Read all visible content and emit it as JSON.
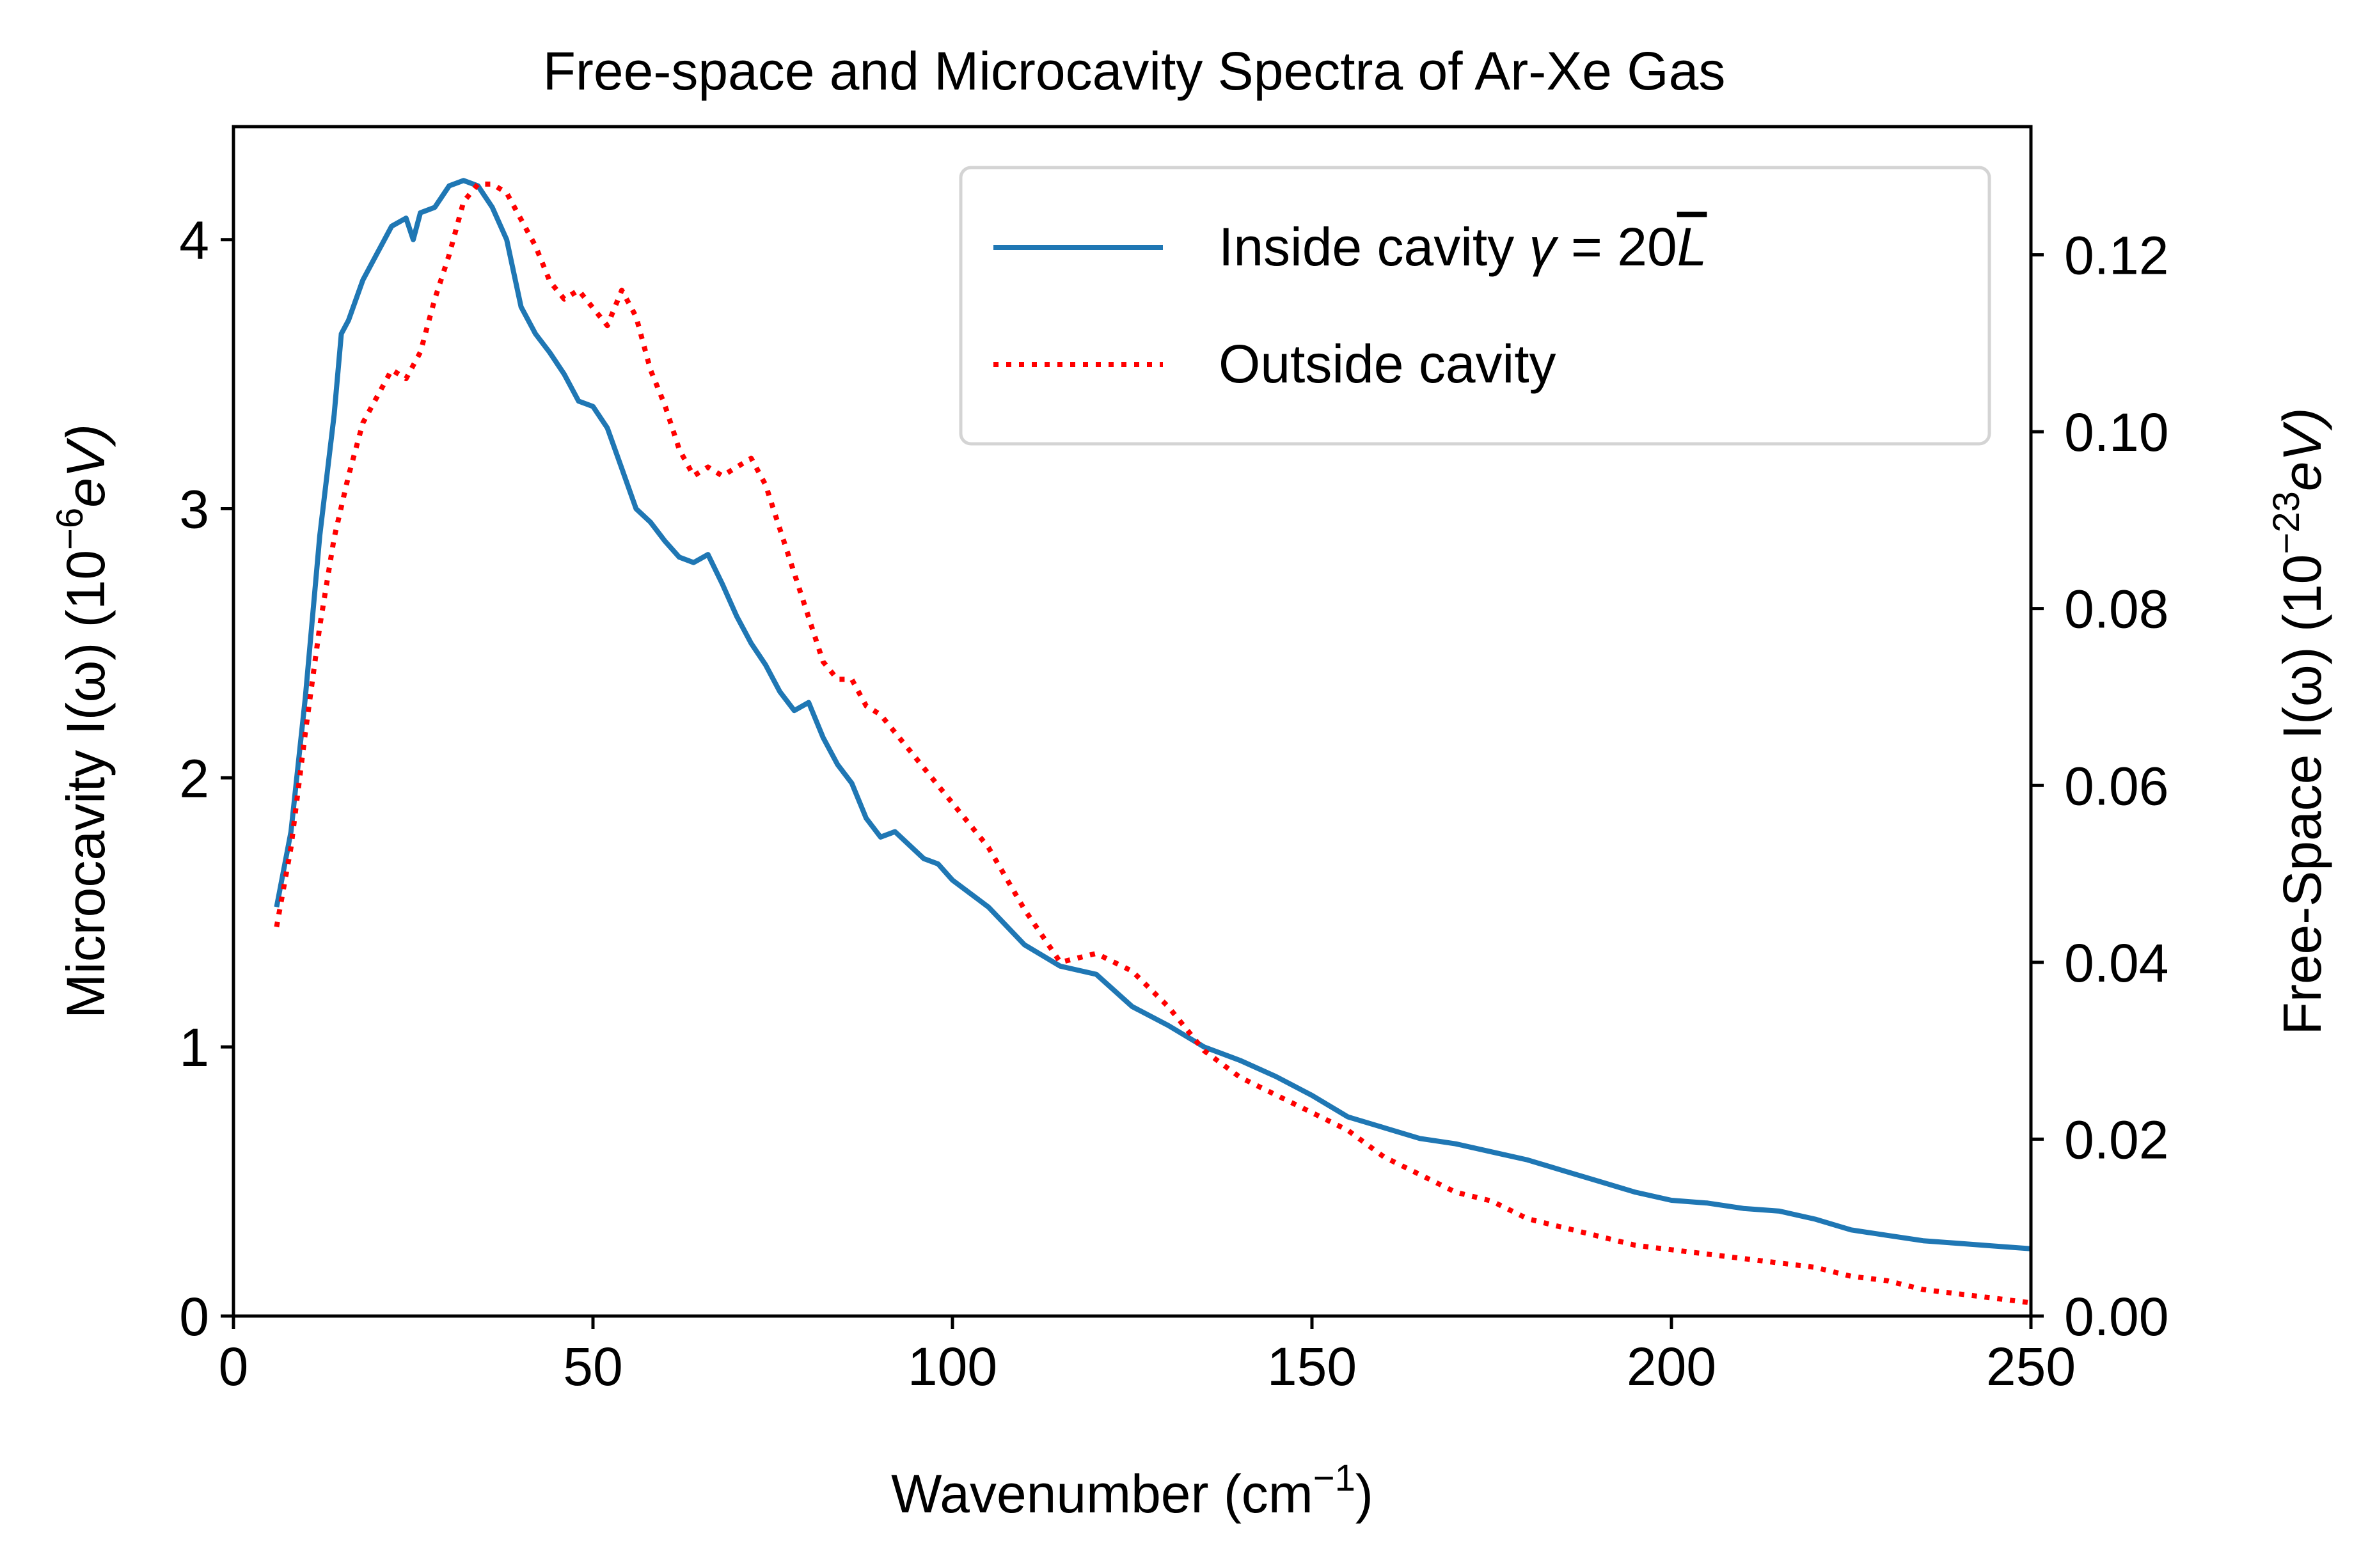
{
  "chart_data": {
    "type": "line",
    "title": "Free-space and Microcavity Spectra of Ar-Xe Gas",
    "xlabel": "Wavenumber (cm⁻¹)",
    "xlabel_parts": {
      "base": "Wavenumber (cm",
      "sup": "−1",
      "end": ")"
    },
    "ylabel_left": "Microcavity I(ω) (10⁻⁶eV)",
    "ylabel_left_parts": {
      "base": "Microcavity I(ω) (10",
      "sup": "−6",
      "end": "eV)"
    },
    "ylabel_right": "Free-Space I(ω) (10⁻²³eV)",
    "ylabel_right_parts": {
      "base": "Free-Space I(ω) (10",
      "sup": "−23",
      "end": "eV)"
    },
    "xlim": [
      0,
      250
    ],
    "ylim_left": [
      0,
      4.42
    ],
    "ylim_right": [
      0,
      0.1345
    ],
    "xticks": [
      0,
      50,
      100,
      150,
      200,
      250
    ],
    "yticks_left": [
      0,
      1,
      2,
      3,
      4
    ],
    "yticks_right": [
      "0.00",
      "0.02",
      "0.04",
      "0.06",
      "0.08",
      "0.10",
      "0.12"
    ],
    "grid": false,
    "legend_position": "top-right",
    "legend": [
      {
        "label": "Inside cavity γ = 20L̅",
        "label_parts": {
          "base": "Inside cavity ",
          "var": "γ",
          "mid": " = 20",
          "over": "L"
        }
      },
      {
        "label": "Outside cavity"
      }
    ],
    "series": [
      {
        "name": "Inside cavity γ = 20L̅",
        "axis": "left",
        "color": "#1f77b4",
        "style": "solid",
        "x": [
          6,
          8,
          10,
          12,
          14,
          15,
          16,
          18,
          20,
          22,
          24,
          25,
          26,
          28,
          30,
          32,
          34,
          36,
          38,
          40,
          42,
          44,
          46,
          48,
          50,
          52,
          54,
          56,
          58,
          60,
          62,
          64,
          66,
          68,
          70,
          72,
          74,
          76,
          78,
          80,
          82,
          84,
          86,
          88,
          90,
          92,
          94,
          96,
          98,
          100,
          105,
          110,
          115,
          120,
          125,
          130,
          135,
          140,
          145,
          150,
          155,
          160,
          165,
          170,
          175,
          180,
          185,
          190,
          195,
          200,
          205,
          210,
          215,
          220,
          225,
          230,
          235,
          240,
          245,
          250
        ],
        "y": [
          1.52,
          1.8,
          2.3,
          2.9,
          3.35,
          3.65,
          3.7,
          3.85,
          3.95,
          4.05,
          4.08,
          4.0,
          4.1,
          4.12,
          4.2,
          4.22,
          4.2,
          4.12,
          4.0,
          3.75,
          3.65,
          3.58,
          3.5,
          3.4,
          3.38,
          3.3,
          3.15,
          3.0,
          2.95,
          2.88,
          2.82,
          2.8,
          2.83,
          2.72,
          2.6,
          2.5,
          2.42,
          2.32,
          2.25,
          2.28,
          2.15,
          2.05,
          1.98,
          1.85,
          1.78,
          1.8,
          1.75,
          1.7,
          1.68,
          1.62,
          1.52,
          1.38,
          1.3,
          1.27,
          1.15,
          1.08,
          1.0,
          0.95,
          0.89,
          0.82,
          0.74,
          0.7,
          0.66,
          0.64,
          0.61,
          0.58,
          0.54,
          0.5,
          0.46,
          0.43,
          0.42,
          0.4,
          0.39,
          0.36,
          0.32,
          0.3,
          0.28,
          0.27,
          0.26,
          0.25
        ]
      },
      {
        "name": "Outside cavity",
        "axis": "right",
        "color": "#ff0000",
        "style": "dotted",
        "x": [
          6,
          8,
          10,
          12,
          14,
          16,
          18,
          20,
          22,
          24,
          26,
          28,
          30,
          32,
          34,
          36,
          38,
          40,
          42,
          44,
          46,
          48,
          50,
          52,
          54,
          56,
          58,
          60,
          62,
          64,
          66,
          68,
          70,
          72,
          74,
          76,
          78,
          80,
          82,
          84,
          86,
          88,
          90,
          92,
          94,
          96,
          98,
          100,
          105,
          110,
          115,
          120,
          125,
          130,
          135,
          140,
          145,
          150,
          155,
          160,
          165,
          170,
          175,
          180,
          185,
          190,
          195,
          200,
          205,
          210,
          215,
          220,
          225,
          230,
          235,
          240,
          245,
          250
        ],
        "y": [
          0.044,
          0.053,
          0.066,
          0.078,
          0.088,
          0.095,
          0.101,
          0.104,
          0.107,
          0.106,
          0.109,
          0.115,
          0.12,
          0.126,
          0.128,
          0.128,
          0.127,
          0.124,
          0.121,
          0.117,
          0.115,
          0.116,
          0.114,
          0.112,
          0.116,
          0.113,
          0.107,
          0.103,
          0.098,
          0.095,
          0.096,
          0.095,
          0.096,
          0.097,
          0.094,
          0.089,
          0.084,
          0.079,
          0.074,
          0.072,
          0.072,
          0.069,
          0.068,
          0.066,
          0.064,
          0.062,
          0.06,
          0.058,
          0.053,
          0.046,
          0.04,
          0.041,
          0.039,
          0.035,
          0.03,
          0.027,
          0.025,
          0.023,
          0.021,
          0.018,
          0.016,
          0.014,
          0.013,
          0.011,
          0.01,
          0.009,
          0.008,
          0.0075,
          0.007,
          0.0065,
          0.006,
          0.0055,
          0.0045,
          0.004,
          0.003,
          0.0025,
          0.002,
          0.0015
        ]
      }
    ]
  }
}
